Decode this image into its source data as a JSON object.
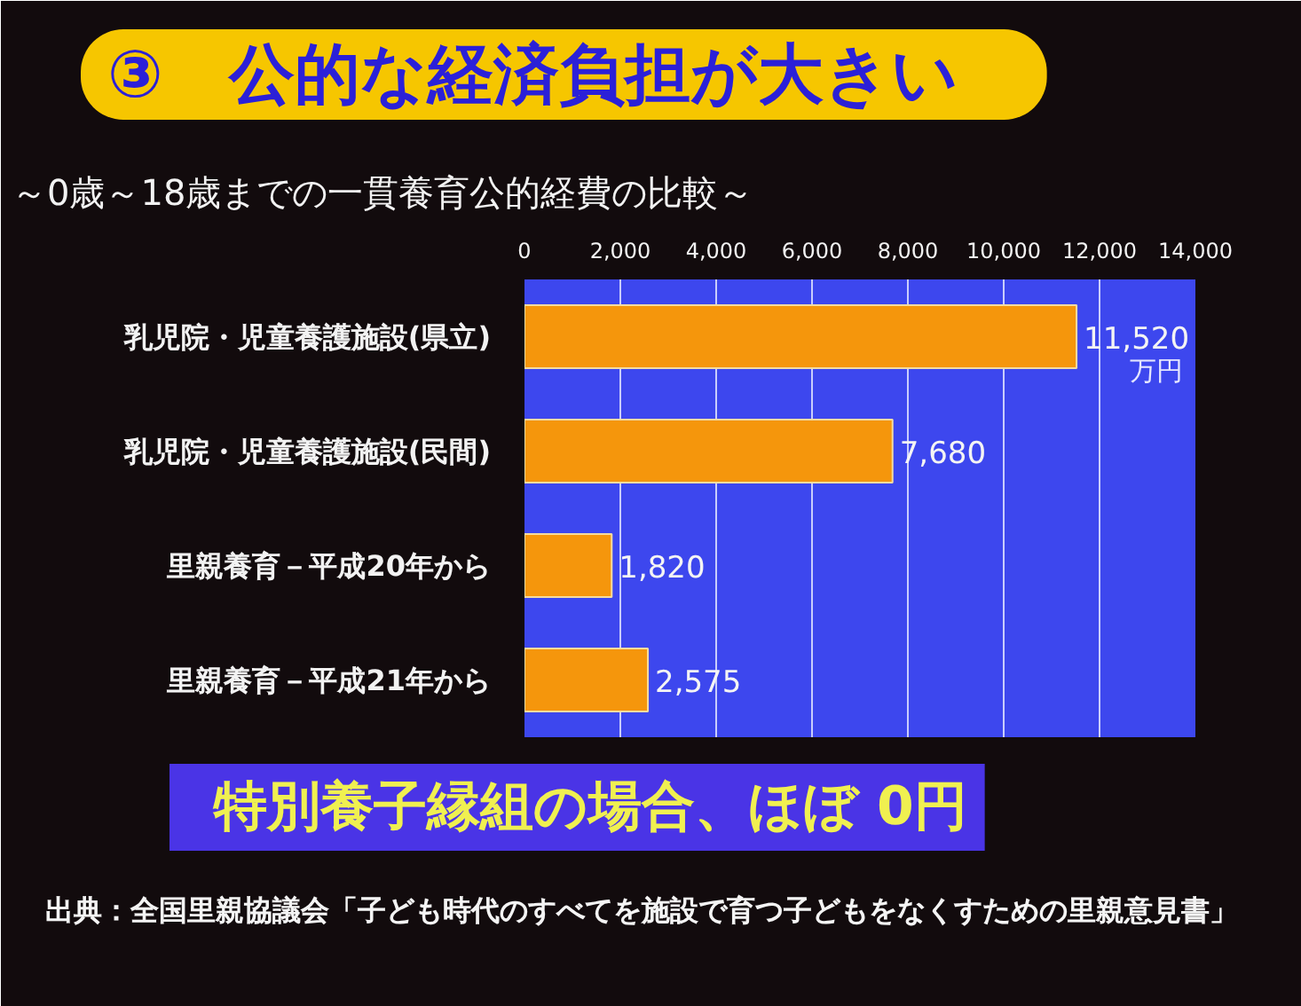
{
  "chart_data": {
    "type": "bar",
    "orientation": "horizontal",
    "title": "③　公的な経済負担が大きい",
    "subtitle": "～0歳～18歳までの一貫養育公的経費の比較～",
    "categories": [
      "乳児院・児童養護施設(県立)",
      "乳児院・児童養護施設(民間)",
      "里親養育－平成20年から",
      "里親養育－平成21年から"
    ],
    "values": [
      11520,
      7680,
      1820,
      2575
    ],
    "value_labels": [
      "11,520",
      "7,680",
      "1,820",
      "2,575"
    ],
    "color": "#f5960c",
    "xlim": [
      0,
      14000
    ],
    "xticks": [
      0,
      {
        "value": 2000,
        "label": "2,000"
      },
      {
        "value": 4000,
        "label": "4,000"
      },
      {
        "value": 6000,
        "label": "6,000"
      },
      {
        "value": 8000,
        "label": "8,000"
      },
      {
        "value": 10000,
        "label": "10,000"
      },
      {
        "value": 12000,
        "label": "12,000"
      },
      {
        "value": 14000,
        "label": "14,000"
      }
    ],
    "grid": "x",
    "annotations": [
      {
        "text": "万円",
        "x": 11520,
        "y": "乳児院・児童養護施設(県立)"
      },
      "特別養子縁組の場合、ほぼ 0円",
      "出典：全国里親協議会「子ども時代のすべてを施設で育つ子どもをなくすための里親意見書」"
    ]
  }
}
